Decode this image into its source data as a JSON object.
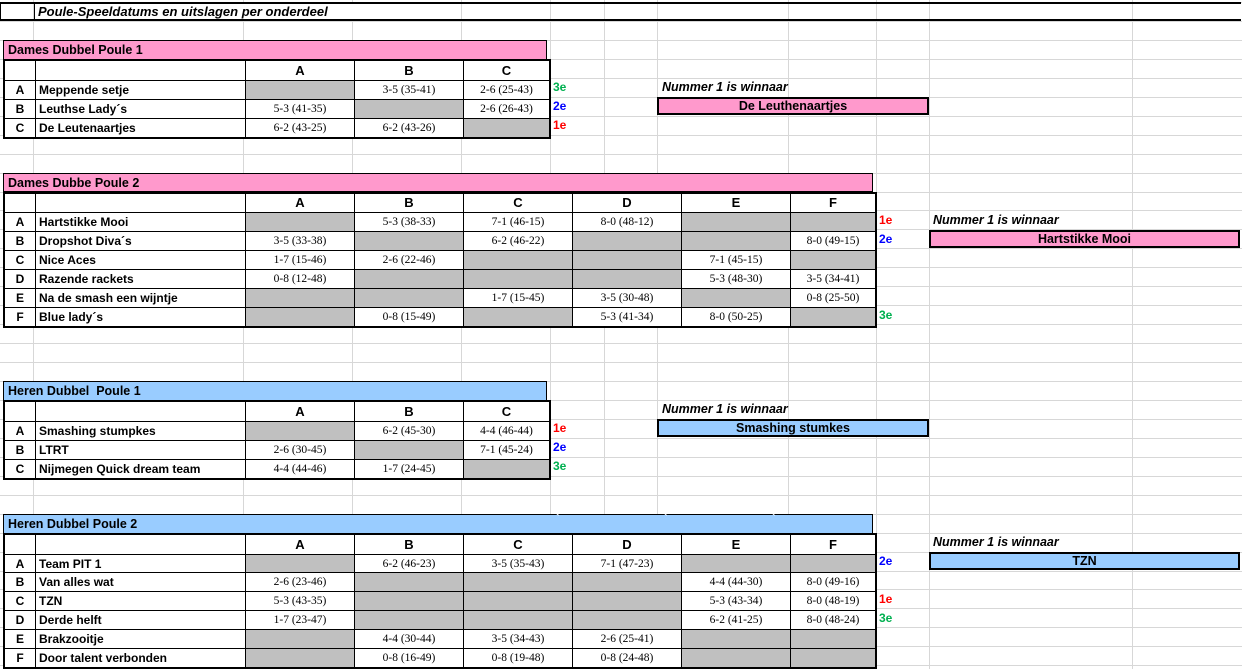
{
  "sheet_title": "Poule-Speeldatums en uitslagen per onderdeel",
  "winner_caption": "Nummer 1 is winnaar",
  "colors": {
    "pink": "#FF99CC",
    "blue": "#99CCFF",
    "gray_cell": "#C0C0C0",
    "rank_red": "#FF0000",
    "rank_blue": "#0000FF",
    "rank_green": "#00B050"
  },
  "band_marks": [
    "`",
    "`",
    "`"
  ],
  "poules": [
    {
      "title": "Dames Dubbel Poule 1",
      "theme": "pink",
      "columns": [
        "A",
        "B",
        "C"
      ],
      "rows": [
        {
          "label": "A",
          "team": "Meppende setje",
          "cells": {
            "B": "3-5 (35-41)",
            "C": "2-6 (25-43)"
          },
          "gray": [
            "A"
          ],
          "rank": "3e",
          "rank_color": "green"
        },
        {
          "label": "B",
          "team": "Leuthse Lady´s",
          "cells": {
            "A": "5-3 (41-35)",
            "C": "2-6 (26-43)"
          },
          "gray": [
            "B"
          ],
          "rank": "2e",
          "rank_color": "blue"
        },
        {
          "label": "C",
          "team": "De Leutenaartjes",
          "cells": {
            "A": "6-2 (43-25)",
            "B": "6-2 (43-26)"
          },
          "gray": [
            "C"
          ],
          "rank": "1e",
          "rank_color": "red"
        }
      ],
      "winner": "De Leuthenaartjes"
    },
    {
      "title": "Dames Dubbe Poule 2",
      "theme": "pink",
      "columns": [
        "A",
        "B",
        "C",
        "D",
        "E",
        "F"
      ],
      "rows": [
        {
          "label": "A",
          "team": "Hartstikke Mooi",
          "cells": {
            "B": "5-3 (38-33)",
            "C": "7-1 (46-15)",
            "D": "8-0 (48-12)"
          },
          "gray": [
            "A",
            "E",
            "F"
          ],
          "rank": "1e",
          "rank_color": "red"
        },
        {
          "label": "B",
          "team": "Dropshot Diva´s",
          "cells": {
            "A": "3-5 (33-38)",
            "C": "6-2 (46-22)",
            "F": "8-0 (49-15)"
          },
          "gray": [
            "B",
            "D",
            "E"
          ],
          "rank": "2e",
          "rank_color": "blue"
        },
        {
          "label": "C",
          "team": "Nice Aces",
          "cells": {
            "A": "1-7 (15-46)",
            "B": "2-6 (22-46)",
            "E": "7-1 (45-15)"
          },
          "gray": [
            "C",
            "D",
            "F"
          ]
        },
        {
          "label": "D",
          "team": "Razende rackets",
          "cells": {
            "A": "0-8 (12-48)",
            "E": "5-3 (48-30)",
            "F": "3-5 (34-41)"
          },
          "gray": [
            "B",
            "C",
            "D"
          ]
        },
        {
          "label": "E",
          "team": "Na de smash een wijntje",
          "cells": {
            "C": "1-7 (15-45)",
            "D": "3-5 (30-48)",
            "F": "0-8 (25-50)"
          },
          "gray": [
            "A",
            "B",
            "E"
          ]
        },
        {
          "label": "F",
          "team": "Blue lady´s",
          "cells": {
            "B": "0-8 (15-49)",
            "D": "5-3 (41-34)",
            "E": "8-0 (50-25)"
          },
          "gray": [
            "A",
            "C",
            "F"
          ],
          "rank": "3e",
          "rank_color": "green"
        }
      ],
      "winner": "Hartstikke Mooi"
    },
    {
      "title": "Heren Dubbel  Poule 1",
      "theme": "blue",
      "columns": [
        "A",
        "B",
        "C"
      ],
      "rows": [
        {
          "label": "A",
          "team": "Smashing stumpkes",
          "cells": {
            "B": "6-2 (45-30)",
            "C": "4-4 (46-44)"
          },
          "gray": [
            "A"
          ],
          "rank": "1e",
          "rank_color": "red"
        },
        {
          "label": "B",
          "team": "LTRT",
          "cells": {
            "A": "2-6 (30-45)",
            "C": "7-1 (45-24)"
          },
          "gray": [
            "B"
          ],
          "rank": "2e",
          "rank_color": "blue"
        },
        {
          "label": "C",
          "team": "Nijmegen Quick dream team",
          "cells": {
            "A": "4-4 (44-46)",
            "B": "1-7 (24-45)"
          },
          "gray": [
            "C"
          ],
          "rank": "3e",
          "rank_color": "green"
        }
      ],
      "winner": "Smashing stumkes"
    },
    {
      "title": "Heren Dubbel Poule 2",
      "theme": "blue",
      "columns": [
        "A",
        "B",
        "C",
        "D",
        "E",
        "F"
      ],
      "rows": [
        {
          "label": "A",
          "team": "Team PIT 1",
          "cells": {
            "B": "6-2 (46-23)",
            "C": "3-5 (35-43)",
            "D": "7-1 (47-23)"
          },
          "gray": [
            "A",
            "E",
            "F"
          ],
          "rank": "2e",
          "rank_color": "blue"
        },
        {
          "label": "B",
          "team": "Van alles wat",
          "cells": {
            "A": "2-6 (23-46)",
            "E": "4-4 (44-30)",
            "F": "8-0 (49-16)"
          },
          "gray": [
            "B",
            "C",
            "D"
          ]
        },
        {
          "label": "C",
          "team": "TZN",
          "cells": {
            "A": "5-3 (43-35)",
            "E": "5-3 (43-34)",
            "F": "8-0 (48-19)"
          },
          "gray": [
            "B",
            "C",
            "D"
          ],
          "rank": "1e",
          "rank_color": "red"
        },
        {
          "label": "D",
          "team": "Derde helft",
          "cells": {
            "A": "1-7 (23-47)",
            "E": "6-2 (41-25)",
            "F": "8-0 (48-24)"
          },
          "gray": [
            "B",
            "C",
            "D"
          ],
          "rank": "3e",
          "rank_color": "green"
        },
        {
          "label": "E",
          "team": "Brakzooitje",
          "cells": {
            "B": "4-4 (30-44)",
            "C": "3-5 (34-43)",
            "D": "2-6 (25-41)"
          },
          "gray": [
            "A",
            "E",
            "F"
          ]
        },
        {
          "label": "F",
          "team": "Door talent verbonden",
          "cells": {
            "B": "0-8 (16-49)",
            "C": "0-8 (19-48)",
            "D": "0-8 (24-48)"
          },
          "gray": [
            "A",
            "E",
            "F"
          ]
        }
      ],
      "winner": "TZN"
    }
  ]
}
